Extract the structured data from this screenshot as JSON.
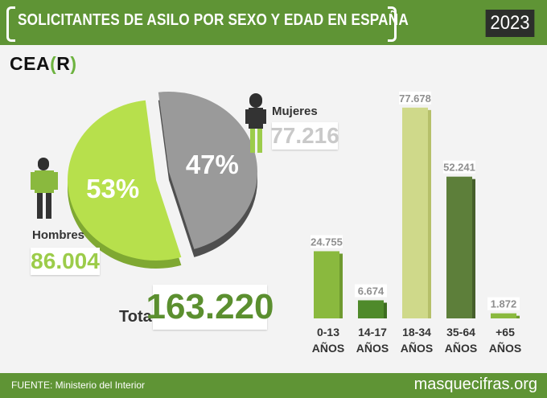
{
  "header": {
    "title": "SOLICITANTES DE ASILO POR SEXO Y EDAD EN ESPAÑA",
    "year": "2023"
  },
  "logo": {
    "prefix": "CEA",
    "open": "(",
    "letter": "R",
    "close": ")"
  },
  "sex": {
    "men_label": "Hombres",
    "men_value": "86.004",
    "men_pct": "53%",
    "women_label": "Mujeres",
    "women_value": "77.216",
    "women_pct": "47%",
    "total_label": "Total",
    "total_value": "163.220"
  },
  "icons": {
    "men": "man-figure-icon",
    "women": "woman-figure-icon"
  },
  "colors": {
    "header_green": "#5f9435",
    "pie_men": "#b7e04c",
    "pie_women": "#9a9a9a",
    "bar_0_13": "#8ab93e",
    "bar_14_17": "#4f8a2b",
    "bar_18_34": "#cfd98a",
    "bar_35_64": "#5d7f3a",
    "bar_65": "#8ab93e"
  },
  "chart_data": [
    {
      "type": "pie",
      "labels": [
        "Hombres",
        "Mujeres"
      ],
      "values": [
        86004,
        77216
      ],
      "percentages": [
        "53%",
        "47%"
      ]
    },
    {
      "type": "bar",
      "categories": [
        [
          "0-13",
          "AÑOS"
        ],
        [
          "14-17",
          "AÑOS"
        ],
        [
          "18-34",
          "AÑOS"
        ],
        [
          "35-64",
          "AÑOS"
        ],
        [
          "+65",
          "AÑOS"
        ]
      ],
      "values": [
        24755,
        6674,
        77678,
        52241,
        1872
      ],
      "value_labels": [
        "24.755",
        "6.674",
        "77.678",
        "52.241",
        "1.872"
      ],
      "ylim": [
        0,
        80000
      ]
    }
  ],
  "footer": {
    "source": "FUENTE: Ministerio del Interior",
    "site": "masquecifras.org"
  }
}
